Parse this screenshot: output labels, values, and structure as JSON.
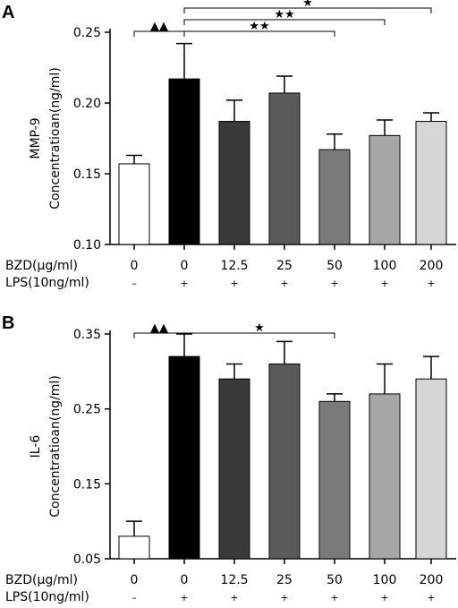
{
  "chart_data": [
    {
      "panel": "A",
      "type": "bar",
      "ylabel_line1": "MMP-9",
      "ylabel_line2": "Concentratioan(ng/ml)",
      "ylim": [
        0.1,
        0.25
      ],
      "yticks": [
        "0.10",
        "0.15",
        "0.20",
        "0.25"
      ],
      "ytick_values": [
        0.1,
        0.15,
        0.2,
        0.25
      ],
      "row1_label": "BZD(μg/ml)",
      "row2_label": "LPS(10ng/ml)",
      "categories": [
        "0",
        "0",
        "12.5",
        "25",
        "50",
        "100",
        "200"
      ],
      "lps": [
        "–",
        "+",
        "+",
        "+",
        "+",
        "+",
        "+"
      ],
      "values": [
        0.157,
        0.217,
        0.187,
        0.207,
        0.167,
        0.177,
        0.187
      ],
      "errors": [
        0.006,
        0.025,
        0.015,
        0.012,
        0.011,
        0.011,
        0.006
      ],
      "colors": [
        "#ffffff",
        "#000000",
        "#3a3a3a",
        "#5a5a5a",
        "#7a7a7a",
        "#a6a6a6",
        "#d6d6d6"
      ],
      "brackets": [
        {
          "from": 0,
          "to": 1,
          "marker": "▲▲",
          "level": 0
        },
        {
          "from": 1,
          "to": 4,
          "marker": "★★",
          "level": 0
        },
        {
          "from": 1,
          "to": 5,
          "marker": "★★",
          "level": 1
        },
        {
          "from": 1,
          "to": 6,
          "marker": "★",
          "level": 2
        }
      ]
    },
    {
      "panel": "B",
      "type": "bar",
      "ylabel_line1": "IL-6",
      "ylabel_line2": "Concentratioan(ng/ml)",
      "ylim": [
        0.05,
        0.35
      ],
      "yticks": [
        "0.05",
        "0.15",
        "0.25",
        "0.35"
      ],
      "ytick_values": [
        0.05,
        0.15,
        0.25,
        0.35
      ],
      "row1_label": "BZD(μg/ml)",
      "row2_label": "LPS(10ng/ml)",
      "categories": [
        "0",
        "0",
        "12.5",
        "25",
        "50",
        "100",
        "200"
      ],
      "lps": [
        "–",
        "+",
        "+",
        "+",
        "+",
        "+",
        "+"
      ],
      "values": [
        0.08,
        0.32,
        0.29,
        0.31,
        0.26,
        0.27,
        0.29
      ],
      "errors": [
        0.02,
        0.03,
        0.02,
        0.03,
        0.01,
        0.04,
        0.03
      ],
      "colors": [
        "#ffffff",
        "#000000",
        "#3a3a3a",
        "#5a5a5a",
        "#7a7a7a",
        "#a6a6a6",
        "#d6d6d6"
      ],
      "brackets": [
        {
          "from": 0,
          "to": 1,
          "marker": "▲▲",
          "level": 0
        },
        {
          "from": 1,
          "to": 4,
          "marker": "★",
          "level": 0
        }
      ]
    }
  ]
}
